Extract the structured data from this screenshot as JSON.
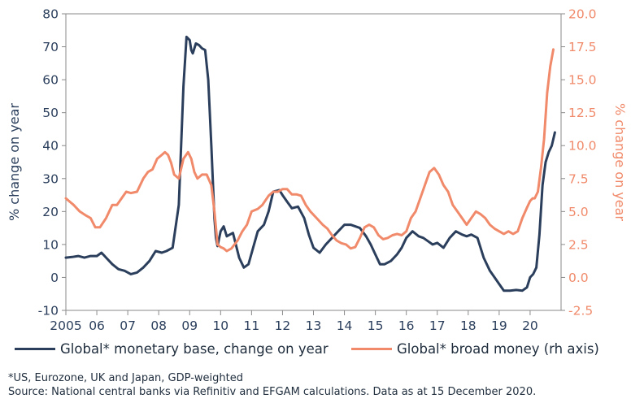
{
  "chart_data": {
    "type": "line",
    "xlabel": "",
    "x_tick_labels": [
      "2005",
      "06",
      "07",
      "08",
      "09",
      "10",
      "11",
      "12",
      "13",
      "14",
      "15",
      "16",
      "17",
      "18",
      "19",
      "20"
    ],
    "x_tick_years": [
      2005,
      2006,
      2007,
      2008,
      2009,
      2010,
      2011,
      2012,
      2013,
      2014,
      2015,
      2016,
      2017,
      2018,
      2019,
      2020
    ],
    "xlim": [
      2005,
      2021
    ],
    "ylabel": "% change on year",
    "ylim": [
      -10,
      80
    ],
    "y_ticks": [
      -10,
      0,
      10,
      20,
      30,
      40,
      50,
      60,
      70,
      80
    ],
    "y_tick_labels": [
      "-10",
      "0",
      "10",
      "20",
      "30",
      "40",
      "50",
      "60",
      "70",
      "80"
    ],
    "y2label": "% change on year",
    "y2lim": [
      -2.5,
      20
    ],
    "y2_ticks": [
      -2.5,
      0,
      2.5,
      5,
      7.5,
      10,
      12.5,
      15,
      17.5,
      20
    ],
    "y2_tick_labels": [
      "-2.5",
      "0.0",
      "2.5",
      "5.0",
      "7.5",
      "10.0",
      "12.5",
      "15.0",
      "17.5",
      "20.0"
    ],
    "grid": false,
    "legend_position": "bottom",
    "series": [
      {
        "name": "Global* monetary base,  change on year",
        "axis": "left",
        "color": "#2b3f5c",
        "x": [
          2005.0,
          2005.2,
          2005.4,
          2005.6,
          2005.8,
          2006.0,
          2006.15,
          2006.3,
          2006.5,
          2006.7,
          2006.9,
          2007.1,
          2007.3,
          2007.5,
          2007.7,
          2007.9,
          2008.1,
          2008.25,
          2008.45,
          2008.65,
          2008.8,
          2008.9,
          2009.0,
          2009.05,
          2009.1,
          2009.2,
          2009.3,
          2009.4,
          2009.5,
          2009.6,
          2009.7,
          2009.8,
          2009.85,
          2009.9,
          2010.0,
          2010.1,
          2010.2,
          2010.3,
          2010.4,
          2010.6,
          2010.75,
          2010.9,
          2011.05,
          2011.2,
          2011.4,
          2011.55,
          2011.7,
          2011.9,
          2012.0,
          2012.15,
          2012.3,
          2012.5,
          2012.7,
          2012.85,
          2013.0,
          2013.2,
          2013.4,
          2013.6,
          2013.8,
          2014.0,
          2014.2,
          2014.35,
          2014.5,
          2014.7,
          2014.85,
          2015.0,
          2015.15,
          2015.3,
          2015.5,
          2015.7,
          2015.85,
          2016.0,
          2016.2,
          2016.4,
          2016.55,
          2016.7,
          2016.85,
          2017.0,
          2017.2,
          2017.4,
          2017.6,
          2017.8,
          2017.95,
          2018.1,
          2018.3,
          2018.5,
          2018.7,
          2018.85,
          2019.0,
          2019.15,
          2019.35,
          2019.55,
          2019.75,
          2019.9,
          2020.0,
          2020.1,
          2020.2,
          2020.3,
          2020.4,
          2020.5,
          2020.6,
          2020.7,
          2020.8
        ],
        "values": [
          6,
          6.2,
          6.5,
          6,
          6.5,
          6.5,
          7.5,
          6,
          4,
          2.5,
          2,
          1,
          1.5,
          3,
          5,
          8,
          7.5,
          8,
          9,
          22,
          58,
          73,
          72,
          69,
          68,
          71,
          70.5,
          69.5,
          69,
          60,
          40,
          18,
          12,
          9.5,
          14,
          15.5,
          12.5,
          13,
          13.5,
          6,
          3,
          4,
          9,
          14,
          16,
          20,
          26,
          26.5,
          25,
          23,
          21,
          21.5,
          18,
          13,
          9,
          7.5,
          10,
          12,
          14,
          16,
          16,
          15.5,
          15,
          12.5,
          10,
          7,
          4,
          4,
          5,
          7,
          9,
          12,
          14,
          12.5,
          12,
          11,
          10,
          10.5,
          9,
          12,
          14,
          13,
          12.5,
          13,
          12,
          6,
          2,
          0,
          -2,
          -4,
          -4,
          -3.8,
          -4,
          -3,
          0,
          1,
          3,
          13,
          28,
          35,
          38,
          40,
          44
        ]
      },
      {
        "name": "Global* broad money (rh axis)",
        "axis": "right",
        "color": "#f08a6a",
        "x": [
          2005.0,
          2005.1,
          2005.25,
          2005.45,
          2005.65,
          2005.8,
          2005.95,
          2006.1,
          2006.3,
          2006.5,
          2006.65,
          2006.8,
          2006.95,
          2007.1,
          2007.3,
          2007.5,
          2007.65,
          2007.8,
          2007.95,
          2008.1,
          2008.2,
          2008.3,
          2008.4,
          2008.5,
          2008.65,
          2008.8,
          2008.95,
          2009.05,
          2009.15,
          2009.25,
          2009.4,
          2009.55,
          2009.7,
          2009.8,
          2009.9,
          2010.0,
          2010.1,
          2010.2,
          2010.35,
          2010.55,
          2010.7,
          2010.85,
          2011.0,
          2011.2,
          2011.35,
          2011.55,
          2011.7,
          2011.85,
          2012.0,
          2012.15,
          2012.3,
          2012.45,
          2012.6,
          2012.75,
          2012.9,
          2013.1,
          2013.3,
          2013.45,
          2013.6,
          2013.75,
          2013.9,
          2014.05,
          2014.2,
          2014.35,
          2014.5,
          2014.65,
          2014.8,
          2014.95,
          2015.1,
          2015.25,
          2015.4,
          2015.55,
          2015.7,
          2015.85,
          2016.0,
          2016.15,
          2016.3,
          2016.45,
          2016.6,
          2016.75,
          2016.9,
          2017.05,
          2017.2,
          2017.35,
          2017.5,
          2017.65,
          2017.8,
          2017.95,
          2018.1,
          2018.25,
          2018.4,
          2018.55,
          2018.7,
          2018.85,
          2019.0,
          2019.15,
          2019.3,
          2019.45,
          2019.6,
          2019.75,
          2019.9,
          2020.0,
          2020.08,
          2020.15,
          2020.25,
          2020.35,
          2020.45,
          2020.55,
          2020.65,
          2020.75
        ],
        "values": [
          6,
          5.8,
          5.5,
          5,
          4.7,
          4.5,
          3.8,
          3.8,
          4.5,
          5.5,
          5.5,
          6,
          6.5,
          6.4,
          6.5,
          7.5,
          8,
          8.2,
          9,
          9.3,
          9.5,
          9.3,
          8.7,
          7.8,
          7.5,
          9,
          9.5,
          9,
          8,
          7.5,
          7.8,
          7.8,
          7,
          5,
          2.5,
          2.3,
          2.2,
          2,
          2.2,
          2.8,
          3.5,
          4,
          5,
          5.2,
          5.5,
          6.2,
          6.5,
          6.5,
          6.7,
          6.7,
          6.3,
          6.3,
          6.2,
          5.5,
          5,
          4.5,
          4,
          3.7,
          3.2,
          2.8,
          2.6,
          2.5,
          2.2,
          2.3,
          3,
          3.8,
          4,
          3.8,
          3.2,
          2.9,
          3,
          3.2,
          3.3,
          3.2,
          3.5,
          4.5,
          5,
          6,
          7,
          8,
          8.3,
          7.8,
          7,
          6.5,
          5.5,
          5,
          4.5,
          4,
          4.5,
          5,
          4.8,
          4.5,
          4,
          3.7,
          3.5,
          3.3,
          3.5,
          3.3,
          3.5,
          4.5,
          5.3,
          5.8,
          6,
          6,
          6.5,
          8.3,
          10.5,
          14,
          16,
          17.3
        ]
      }
    ]
  },
  "legend": {
    "items": [
      {
        "label": "Global* monetary base,  change on year",
        "color": "#2b3f5c"
      },
      {
        "label": "Global* broad money (rh axis)",
        "color": "#f08a6a"
      }
    ]
  },
  "notes": {
    "footnote": "*US, Eurozone, UK and Japan, GDP-weighted",
    "source": "Source: National central banks via Refinitiv and EFGAM calculations. Data as at 15 December 2020."
  }
}
